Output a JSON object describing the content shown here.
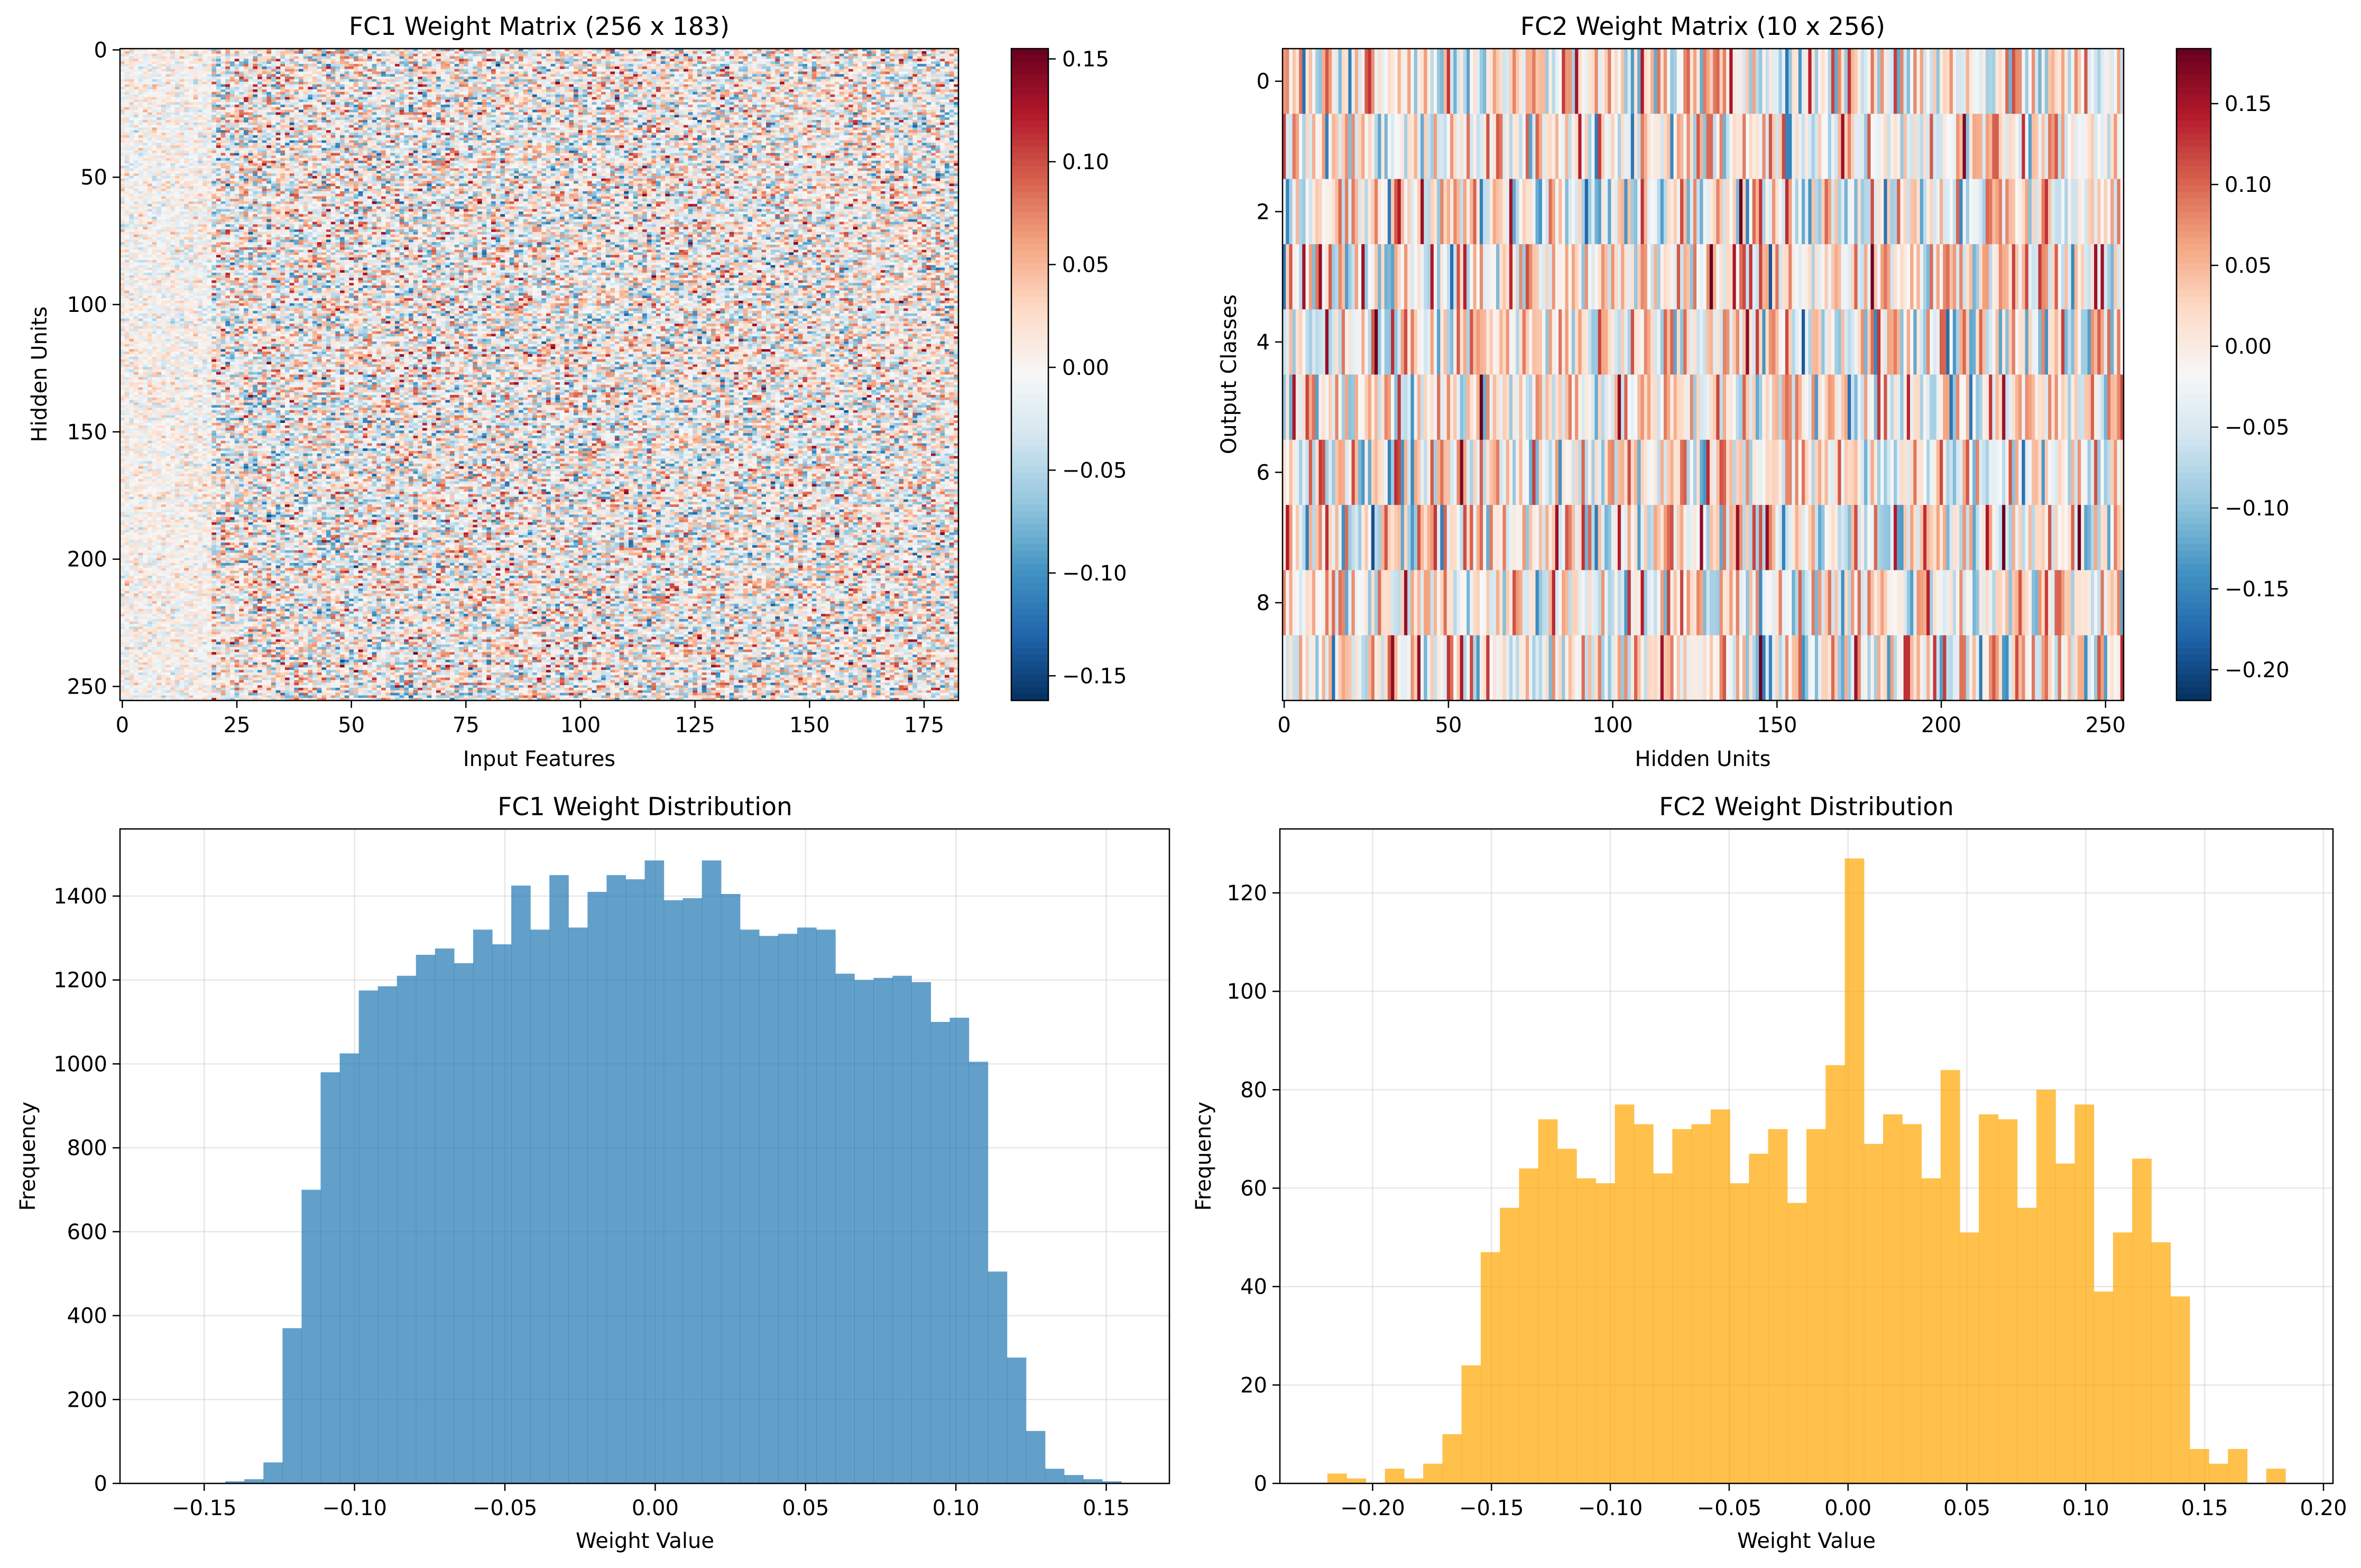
{
  "chart_data": [
    {
      "type": "heatmap",
      "title": "FC1 Weight Matrix (256 x 183)",
      "xlabel": "Input Features",
      "ylabel": "Hidden Units",
      "rows": 256,
      "cols": 183,
      "colormap": "RdBu_r",
      "vmin": -0.162,
      "vmax": 0.155,
      "x_ticks": [
        "0",
        "25",
        "50",
        "75",
        "100",
        "125",
        "150",
        "175"
      ],
      "y_ticks": [
        "0",
        "50",
        "100",
        "150",
        "200",
        "250"
      ],
      "colorbar_ticks": [
        "0.15",
        "0.10",
        "0.05",
        "0.00",
        "−0.05",
        "−0.10",
        "−0.15"
      ],
      "colorbar_tick_values": [
        0.15,
        0.1,
        0.05,
        0.0,
        -0.05,
        -0.1,
        -0.15
      ]
    },
    {
      "type": "heatmap",
      "title": "FC2 Weight Matrix (10 x 256)",
      "xlabel": "Hidden Units",
      "ylabel": "Output Classes",
      "rows": 10,
      "cols": 256,
      "colormap": "RdBu_r",
      "vmin": -0.219,
      "vmax": 0.184,
      "x_ticks": [
        "0",
        "50",
        "100",
        "150",
        "200",
        "250"
      ],
      "y_ticks": [
        "0",
        "2",
        "4",
        "6",
        "8"
      ],
      "colorbar_ticks": [
        "0.15",
        "0.10",
        "0.05",
        "0.00",
        "−0.05",
        "−0.10",
        "−0.15",
        "−0.20"
      ],
      "colorbar_tick_values": [
        0.15,
        0.1,
        0.05,
        0.0,
        -0.05,
        -0.1,
        -0.15,
        -0.2
      ]
    },
    {
      "type": "bar",
      "title": "FC1 Weight Distribution",
      "xlabel": "Weight Value",
      "ylabel": "Frequency",
      "color": "#1f77b4",
      "alpha": 0.7,
      "grid": true,
      "bin_start": -0.162,
      "bin_width": 0.00634,
      "xlim": [
        -0.178,
        0.171
      ],
      "ylim": [
        0,
        1560
      ],
      "x_ticks": [
        "−0.15",
        "−0.10",
        "−0.05",
        "0.00",
        "0.05",
        "0.10",
        "0.15"
      ],
      "x_tick_values": [
        -0.15,
        -0.1,
        -0.05,
        0.0,
        0.05,
        0.1,
        0.15
      ],
      "y_ticks": [
        "0",
        "200",
        "400",
        "600",
        "800",
        "1000",
        "1200",
        "1400"
      ],
      "y_tick_values": [
        0,
        200,
        400,
        600,
        800,
        1000,
        1200,
        1400
      ],
      "values": [
        0,
        0,
        0,
        5,
        10,
        50,
        370,
        700,
        980,
        1025,
        1175,
        1185,
        1210,
        1260,
        1275,
        1240,
        1320,
        1285,
        1425,
        1320,
        1450,
        1325,
        1410,
        1450,
        1440,
        1485,
        1390,
        1395,
        1485,
        1405,
        1320,
        1305,
        1310,
        1325,
        1320,
        1215,
        1200,
        1205,
        1210,
        1195,
        1100,
        1110,
        1005,
        505,
        300,
        125,
        35,
        20,
        10,
        5
      ]
    },
    {
      "type": "bar",
      "title": "FC2 Weight Distribution",
      "xlabel": "Weight Value",
      "ylabel": "Frequency",
      "color": "#ffa500",
      "alpha": 0.7,
      "grid": true,
      "bin_start": -0.219,
      "bin_width": 0.00806,
      "xlim": [
        -0.239,
        0.204
      ],
      "ylim": [
        0,
        133
      ],
      "x_ticks": [
        "−0.20",
        "−0.15",
        "−0.10",
        "−0.05",
        "0.00",
        "0.05",
        "0.10",
        "0.15",
        "0.20"
      ],
      "x_tick_values": [
        -0.2,
        -0.15,
        -0.1,
        -0.05,
        0.0,
        0.05,
        0.1,
        0.15,
        0.2
      ],
      "y_ticks": [
        "0",
        "20",
        "40",
        "60",
        "80",
        "100",
        "120"
      ],
      "y_tick_values": [
        0,
        20,
        40,
        60,
        80,
        100,
        120
      ],
      "values": [
        2,
        1,
        0,
        3,
        1,
        4,
        10,
        24,
        47,
        56,
        64,
        74,
        68,
        62,
        61,
        77,
        73,
        63,
        72,
        73,
        76,
        61,
        67,
        72,
        57,
        72,
        85,
        127,
        69,
        75,
        73,
        62,
        84,
        51,
        75,
        74,
        56,
        80,
        65,
        77,
        39,
        51,
        66,
        49,
        38,
        7,
        4,
        7,
        0,
        3
      ]
    }
  ]
}
